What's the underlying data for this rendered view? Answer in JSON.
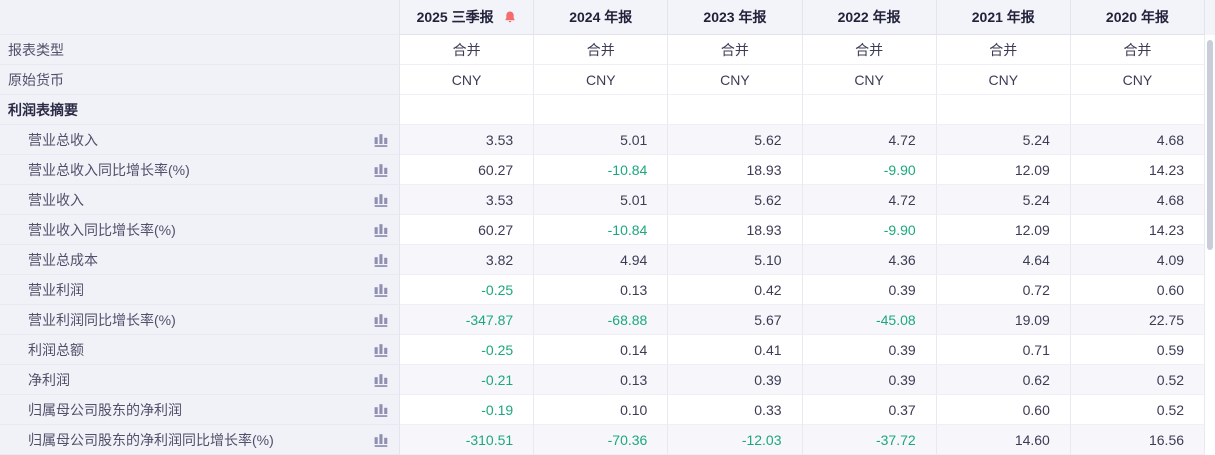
{
  "table": {
    "header": {
      "columns": [
        {
          "label": "2025 三季报",
          "alert": true
        },
        {
          "label": "2024 年报",
          "alert": false
        },
        {
          "label": "2023 年报",
          "alert": false
        },
        {
          "label": "2022 年报",
          "alert": false
        },
        {
          "label": "2021 年报",
          "alert": false
        },
        {
          "label": "2020 年报",
          "alert": false
        }
      ]
    },
    "rows": [
      {
        "kind": "meta",
        "label": "报表类型",
        "chart_icon": false,
        "striped": false,
        "center": true,
        "values": [
          "合并",
          "合并",
          "合并",
          "合并",
          "合并",
          "合并"
        ]
      },
      {
        "kind": "meta",
        "label": "原始货币",
        "chart_icon": false,
        "striped": false,
        "center": true,
        "values": [
          "CNY",
          "CNY",
          "CNY",
          "CNY",
          "CNY",
          "CNY"
        ]
      },
      {
        "kind": "section",
        "label": "利润表摘要",
        "chart_icon": false,
        "striped": false,
        "center": false,
        "values": [
          "",
          "",
          "",
          "",
          "",
          ""
        ]
      },
      {
        "kind": "metric",
        "label": "营业总收入",
        "chart_icon": true,
        "striped": true,
        "center": false,
        "values": [
          "3.53",
          "5.01",
          "5.62",
          "4.72",
          "5.24",
          "4.68"
        ]
      },
      {
        "kind": "metric",
        "label": "营业总收入同比增长率(%)",
        "chart_icon": true,
        "striped": false,
        "center": false,
        "values": [
          "60.27",
          "-10.84",
          "18.93",
          "-9.90",
          "12.09",
          "14.23"
        ]
      },
      {
        "kind": "metric",
        "label": "营业收入",
        "chart_icon": true,
        "striped": true,
        "center": false,
        "values": [
          "3.53",
          "5.01",
          "5.62",
          "4.72",
          "5.24",
          "4.68"
        ]
      },
      {
        "kind": "metric",
        "label": "营业收入同比增长率(%)",
        "chart_icon": true,
        "striped": false,
        "center": false,
        "values": [
          "60.27",
          "-10.84",
          "18.93",
          "-9.90",
          "12.09",
          "14.23"
        ]
      },
      {
        "kind": "metric",
        "label": "营业总成本",
        "chart_icon": true,
        "striped": true,
        "center": false,
        "values": [
          "3.82",
          "4.94",
          "5.10",
          "4.36",
          "4.64",
          "4.09"
        ]
      },
      {
        "kind": "metric",
        "label": "营业利润",
        "chart_icon": true,
        "striped": false,
        "center": false,
        "values": [
          "-0.25",
          "0.13",
          "0.42",
          "0.39",
          "0.72",
          "0.60"
        ]
      },
      {
        "kind": "metric",
        "label": "营业利润同比增长率(%)",
        "chart_icon": true,
        "striped": true,
        "center": false,
        "values": [
          "-347.87",
          "-68.88",
          "5.67",
          "-45.08",
          "19.09",
          "22.75"
        ]
      },
      {
        "kind": "metric",
        "label": "利润总额",
        "chart_icon": true,
        "striped": false,
        "center": false,
        "values": [
          "-0.25",
          "0.14",
          "0.41",
          "0.39",
          "0.71",
          "0.59"
        ]
      },
      {
        "kind": "metric",
        "label": "净利润",
        "chart_icon": true,
        "striped": true,
        "center": false,
        "values": [
          "-0.21",
          "0.13",
          "0.39",
          "0.39",
          "0.62",
          "0.52"
        ]
      },
      {
        "kind": "metric",
        "label": "归属母公司股东的净利润",
        "chart_icon": true,
        "striped": false,
        "center": false,
        "values": [
          "-0.19",
          "0.10",
          "0.33",
          "0.37",
          "0.60",
          "0.52"
        ]
      },
      {
        "kind": "metric",
        "label": "归属母公司股东的净利润同比增长率(%)",
        "chart_icon": true,
        "striped": true,
        "center": false,
        "values": [
          "-310.51",
          "-70.36",
          "-12.03",
          "-37.72",
          "14.60",
          "16.56"
        ]
      }
    ]
  },
  "colors": {
    "negative_value": "#1ca87c",
    "normal_value": "#3c3c55",
    "alert_bell": "#f56c6c",
    "chart_icon": "#8a8aae",
    "header_bg": "#f3f4f9",
    "label_column_bg": "#f1f1f8",
    "striped_row_bg": "#f7f7fb"
  },
  "icons": {
    "bell": "alert-bell-icon",
    "chart": "bar-chart-icon"
  }
}
